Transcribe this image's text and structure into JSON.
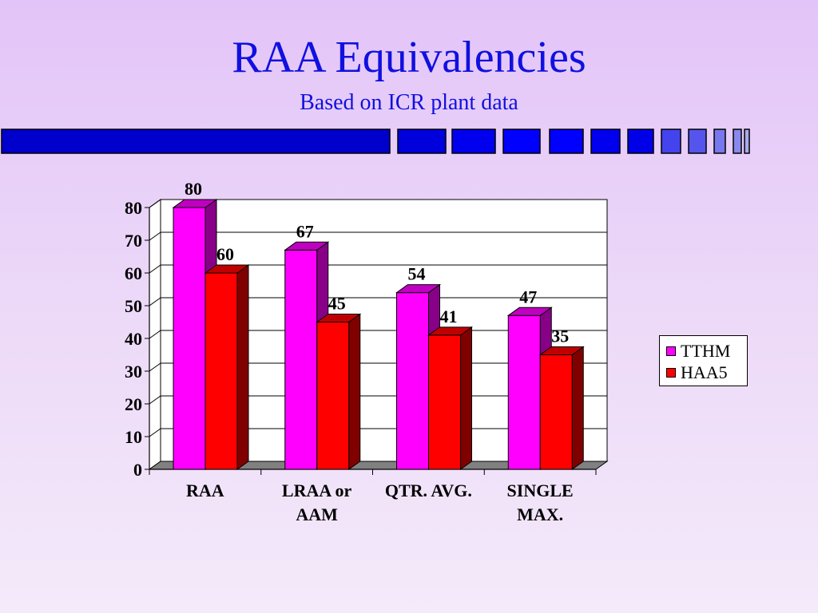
{
  "slide": {
    "title": "RAA Equivalencies",
    "subtitle": "Based on ICR plant data"
  },
  "colors": {
    "title": "#1010e0",
    "deco_bar": [
      "#0000cc",
      "#0000dd",
      "#0000ee",
      "#0000ff",
      "#0000ff",
      "#0000ee",
      "#0000e8",
      "#4444ee",
      "#5555ee",
      "#7777ee",
      "#8888ee",
      "#aaaaee",
      "#bbbbee"
    ]
  },
  "chart_data": {
    "type": "bar",
    "categories": [
      "RAA",
      "LRAA or AAM",
      "QTR. AVG.",
      "SINGLE MAX."
    ],
    "category_lines": [
      [
        "RAA"
      ],
      [
        "LRAA or",
        "AAM"
      ],
      [
        "QTR. AVG."
      ],
      [
        "SINGLE",
        "MAX."
      ]
    ],
    "series": [
      {
        "name": "TTHM",
        "values": [
          80,
          67,
          54,
          47
        ],
        "color": "#ff00ff",
        "side_color": "#880088",
        "top_color": "#c000c0"
      },
      {
        "name": "HAA5",
        "values": [
          60,
          45,
          41,
          35
        ],
        "color": "#ff0000",
        "side_color": "#800000",
        "top_color": "#c00000"
      }
    ],
    "ylim": [
      0,
      80
    ],
    "yticks": [
      0,
      10,
      20,
      30,
      40,
      50,
      60,
      70,
      80
    ],
    "grid": true,
    "legend": "right",
    "three_d": true
  }
}
